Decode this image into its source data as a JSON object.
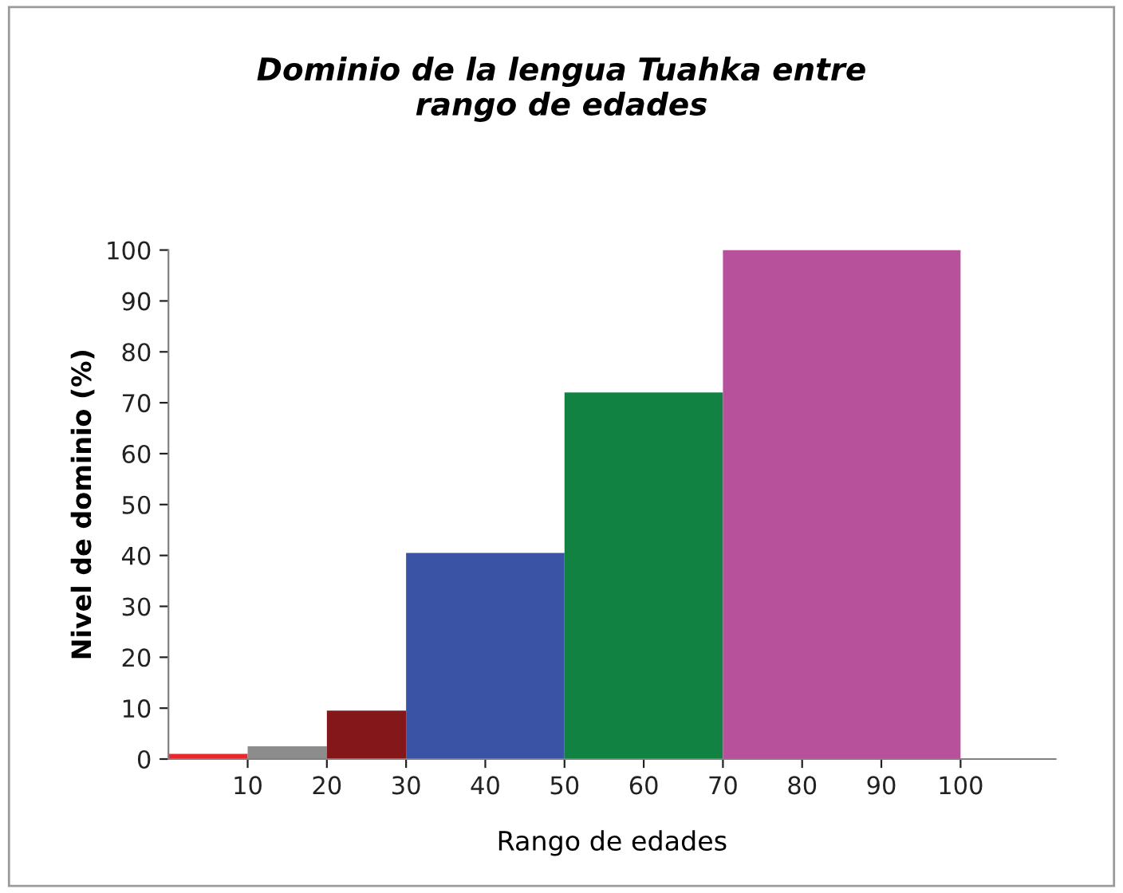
{
  "chart_data": {
    "type": "histogram",
    "title": "Dominio de la lengua Tuahka entre\nrango de edades",
    "xlabel": "Rango de edades",
    "ylabel": "Nivel de dominio (%)",
    "bins": [
      0,
      10,
      20,
      30,
      50,
      70,
      100
    ],
    "values": [
      1,
      2.5,
      9.5,
      40.5,
      72,
      100
    ],
    "colors": [
      "#e8282a",
      "#8c8c8c",
      "#84171a",
      "#3a53a4",
      "#118241",
      "#b8519b"
    ],
    "xlim": [
      0,
      112
    ],
    "xticks": [
      10,
      20,
      30,
      40,
      50,
      60,
      70,
      80,
      90,
      100
    ],
    "ylim": [
      0,
      100
    ],
    "yticks": [
      0,
      10,
      20,
      30,
      40,
      50,
      60,
      70,
      80,
      90,
      100
    ],
    "grid": false,
    "legend": false
  }
}
